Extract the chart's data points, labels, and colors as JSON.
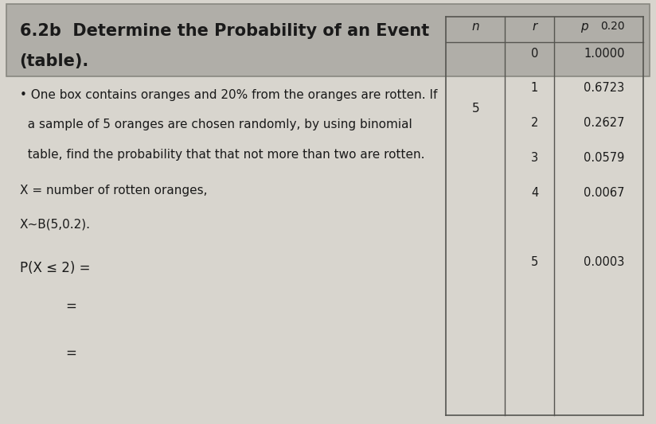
{
  "title_line1": "6.2b  Determine the Probability of an Event",
  "title_line2": "(table).",
  "body_text": [
    "• One box contains oranges and 20% from the oranges are rotten. If",
    "  a sample of 5 oranges are chosen randomly, by using binomial",
    "  table, find the probability that that not more than two are rotten."
  ],
  "line1": "X = number of rotten oranges,",
  "line2": "X~B(5,0.2).",
  "line3": "P(X ≤ 2) =",
  "line4": "=",
  "line5": "=",
  "table_header_n": "n",
  "table_header_r": "r",
  "table_n": "5",
  "table_r": [
    "0",
    "1",
    "2",
    "3",
    "4",
    "",
    "5"
  ],
  "table_p": [
    "1.0000",
    "0.6723",
    "0.2627",
    "0.0579",
    "0.0067",
    "",
    "0.0003"
  ],
  "bg_color": "#d8d5ce",
  "header_bg": "#b0aea8",
  "text_color": "#1a1a1a",
  "fig_width": 8.24,
  "fig_height": 5.33
}
